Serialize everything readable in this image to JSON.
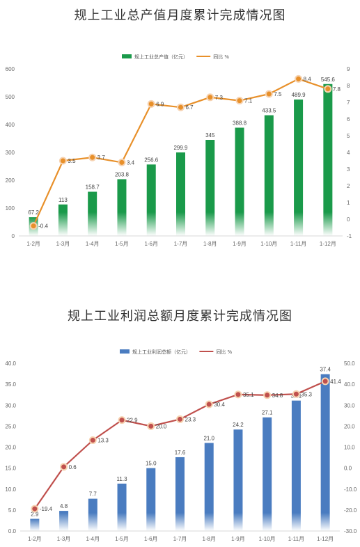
{
  "chart_data": [
    {
      "type": "bar",
      "title": "规上工业总产值月度累计完成情况图",
      "categories": [
        "1-2月",
        "1-3月",
        "1-4月",
        "1-5月",
        "1-6月",
        "1-7月",
        "1-8月",
        "1-9月",
        "1-10月",
        "1-11月",
        "1-12月"
      ],
      "series": [
        {
          "name": "规上工业总产值（亿元）",
          "type": "bar",
          "axis": "left",
          "color": "#1a9a4a",
          "values": [
            67.2,
            113,
            158.7,
            203.8,
            256.6,
            299.9,
            345,
            388.8,
            433.5,
            489.9,
            545.6
          ],
          "labels": [
            "67.2",
            "113",
            "158.7",
            "203.8",
            "256.6",
            "299.9",
            "345",
            "388.8",
            "433.5",
            "489.9",
            "545.6"
          ]
        },
        {
          "name": "同比 %",
          "type": "line",
          "axis": "right",
          "color": "#e8902a",
          "values": [
            -0.4,
            3.5,
            3.7,
            3.4,
            6.9,
            6.7,
            7.3,
            7.1,
            7.5,
            8.4,
            7.8
          ],
          "labels": [
            "-0.4",
            "3.5",
            "3.7",
            "3.4",
            "6.9",
            "6.7",
            "7.3",
            "7.1",
            "7.5",
            "8.4",
            "7.8"
          ]
        }
      ],
      "y_left": {
        "min": 0,
        "max": 600,
        "ticks": [
          "0",
          "100",
          "200",
          "300",
          "400",
          "500",
          "600"
        ]
      },
      "y_right": {
        "min": -1,
        "max": 9,
        "ticks": [
          "-1",
          "0",
          "1",
          "2",
          "3",
          "4",
          "5",
          "6",
          "7",
          "8",
          "9"
        ]
      },
      "legend": "top-center",
      "grid": false
    },
    {
      "type": "bar",
      "title": "规上工业利润总额月度累计完成情况图",
      "categories": [
        "1-2月",
        "1-3月",
        "1-4月",
        "1-5月",
        "1-6月",
        "1-7月",
        "1-8月",
        "1-9月",
        "1-10月",
        "1-11月",
        "1-12月"
      ],
      "series": [
        {
          "name": "规上工业利润总额（亿元）",
          "type": "bar",
          "axis": "left",
          "color": "#4a7cc0",
          "values": [
            2.9,
            4.8,
            7.7,
            11.3,
            15.0,
            17.6,
            21.0,
            24.2,
            27.1,
            31.1,
            37.4
          ],
          "labels": [
            "2.9",
            "4.8",
            "7.7",
            "11.3",
            "15.0",
            "17.6",
            "21.0",
            "24.2",
            "27.1",
            "31.1",
            "37.4"
          ]
        },
        {
          "name": "同比 %",
          "type": "line",
          "axis": "right",
          "color": "#c0504d",
          "values": [
            -19.4,
            0.6,
            13.3,
            22.9,
            20.0,
            23.3,
            30.4,
            35.1,
            34.8,
            35.3,
            41.4
          ],
          "labels": [
            "-19.4",
            "0.6",
            "13.3",
            "22.9",
            "20.0",
            "23.3",
            "30.4",
            "35.1",
            "34.8",
            "35.3",
            "41.4"
          ]
        }
      ],
      "y_left": {
        "min": 0,
        "max": 40,
        "ticks": [
          "0.0",
          "5.0",
          "10.0",
          "15.0",
          "20.0",
          "25.0",
          "30.0",
          "35.0",
          "40.0"
        ]
      },
      "y_right": {
        "min": -30,
        "max": 50,
        "ticks": [
          "-30.0",
          "-20.0",
          "-10.0",
          "0.0",
          "10.0",
          "20.0",
          "30.0",
          "40.0",
          "50.0"
        ]
      },
      "legend": "top-center",
      "grid": false
    }
  ]
}
